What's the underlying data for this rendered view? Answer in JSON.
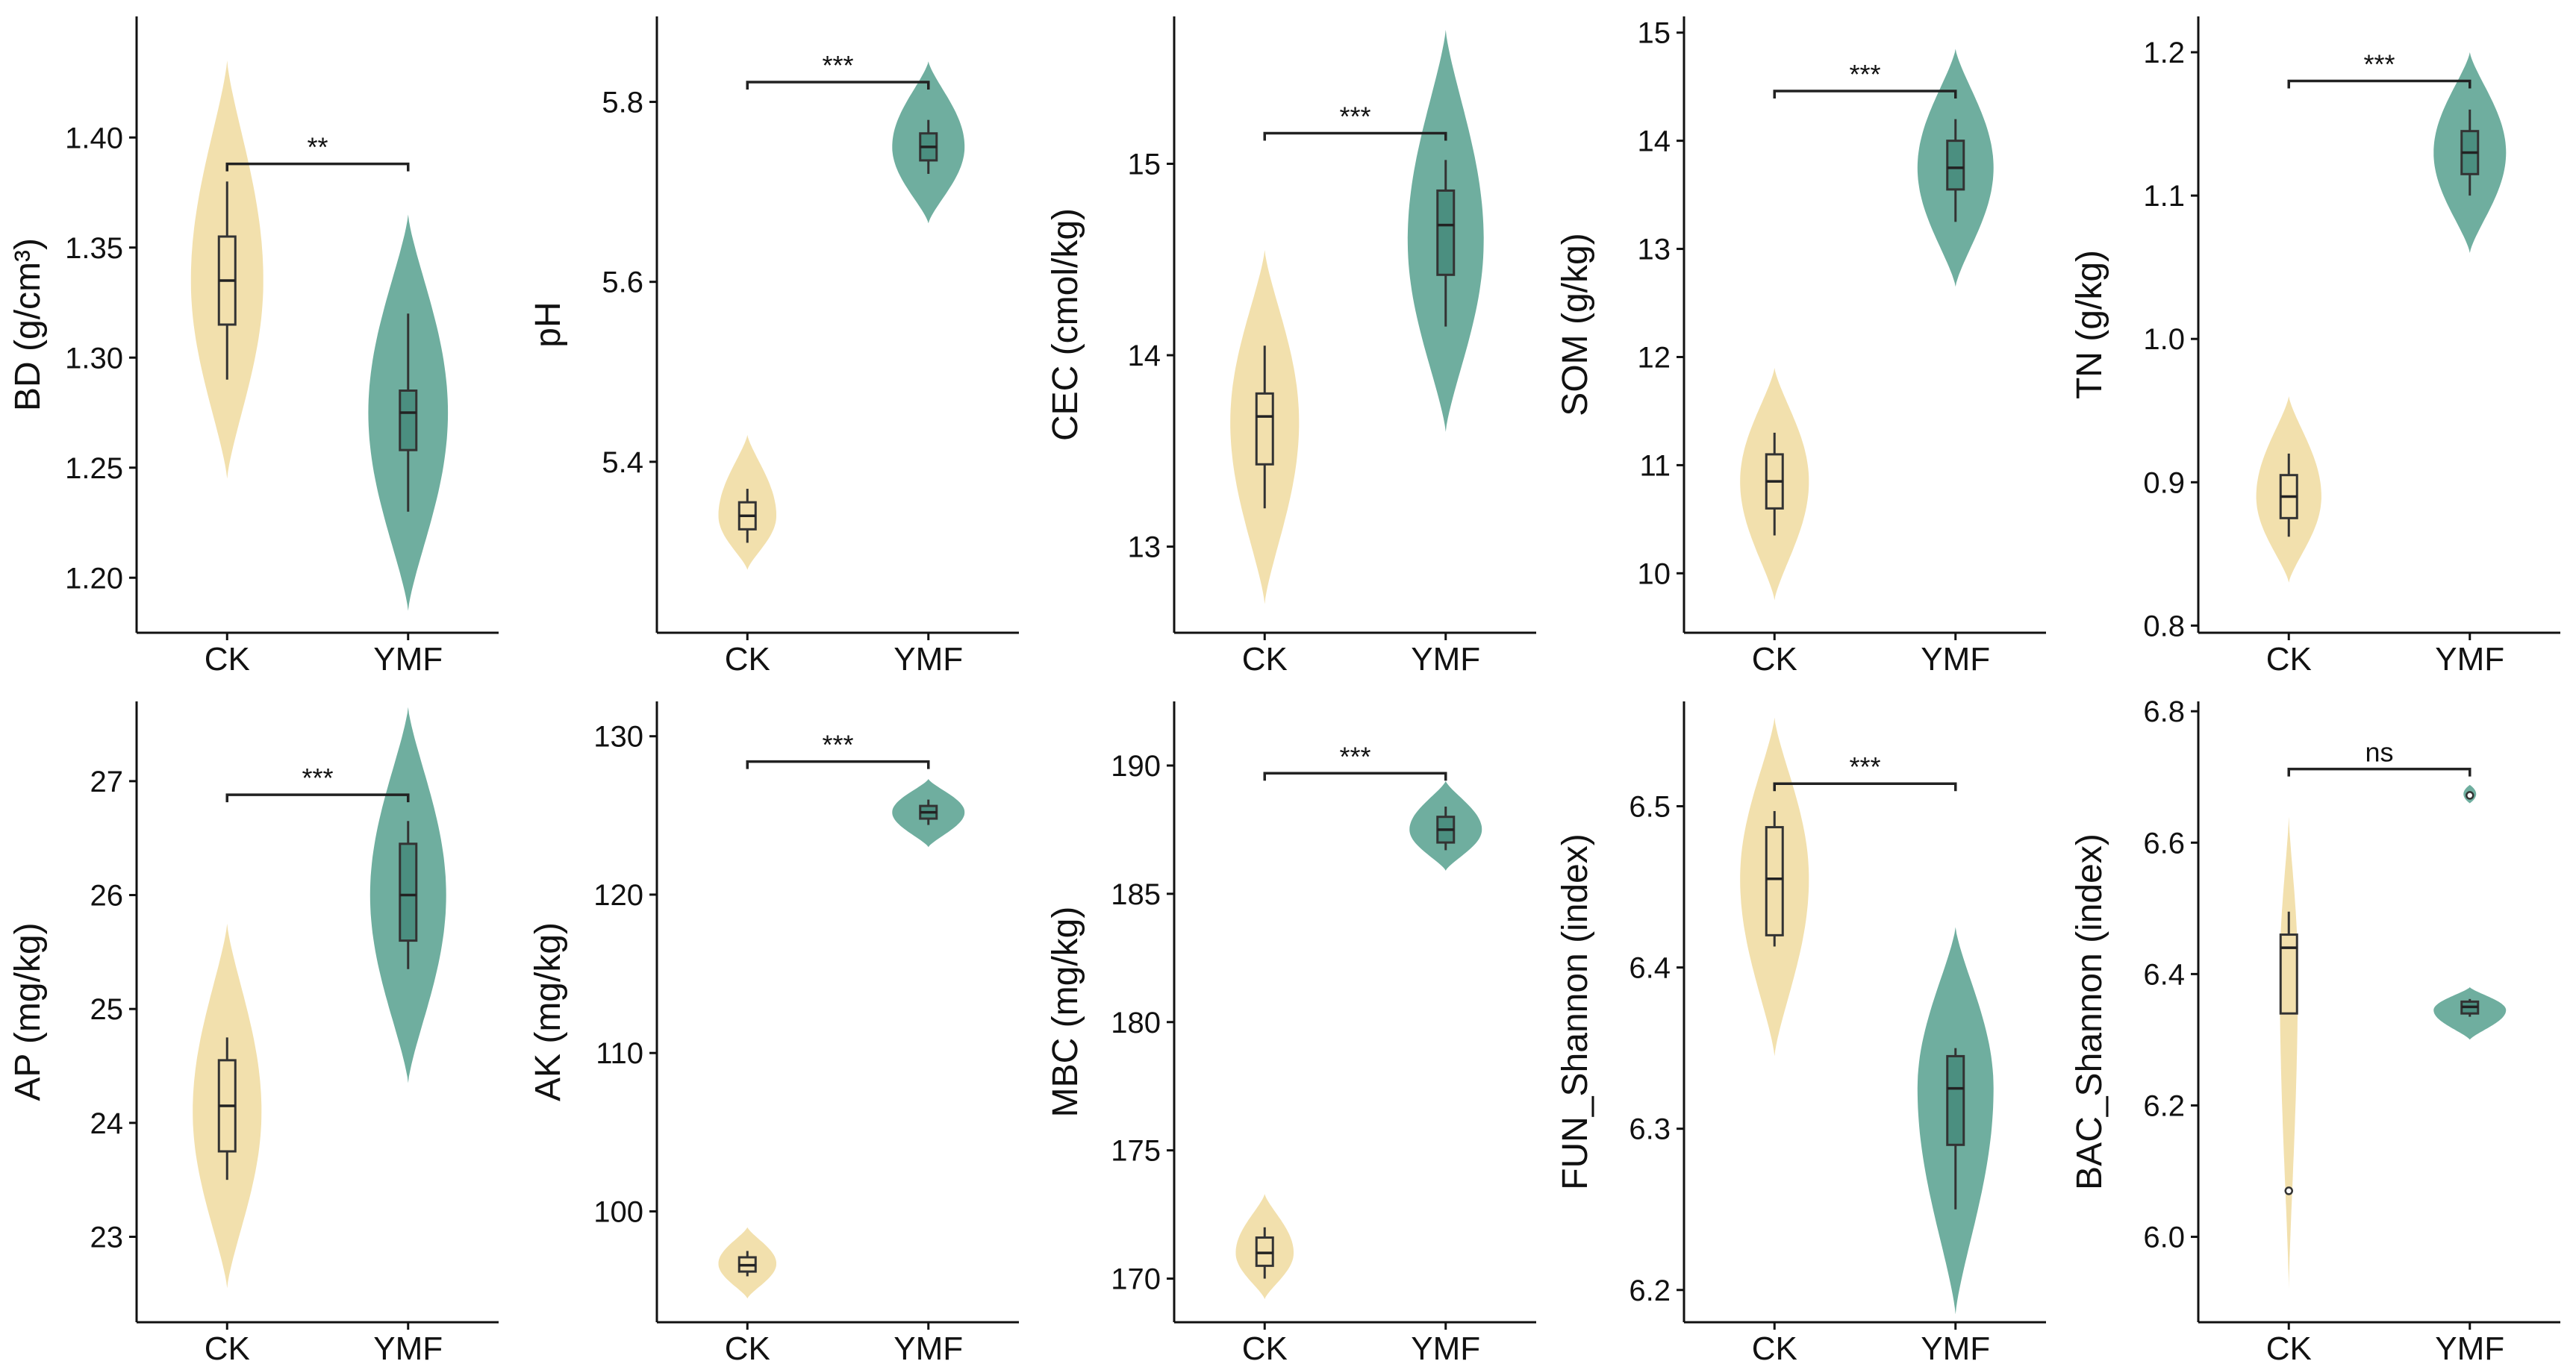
{
  "colors": {
    "CK": "#f2e0ad",
    "YMF": "#6fae9f",
    "YMF_box": "#4b8f80",
    "axis": "#111111"
  },
  "chart_data": [
    {
      "type": "violin",
      "ylabel": "BD (g/cm³)",
      "categories": [
        "CK",
        "YMF"
      ],
      "ylim": [
        1.175,
        1.455
      ],
      "yticks": [
        1.2,
        1.25,
        1.3,
        1.35,
        1.4
      ],
      "ytick_labels": [
        "1.20",
        "1.25",
        "1.30",
        "1.35",
        "1.40"
      ],
      "significance": "**",
      "bracket_y": 1.388,
      "series": [
        {
          "name": "CK",
          "violin_range": [
            1.245,
            1.435
          ],
          "violin_peak": 1.335,
          "violin_width": 0.4,
          "box": {
            "min": 1.29,
            "q1": 1.315,
            "median": 1.335,
            "q3": 1.355,
            "max": 1.38
          },
          "outliers": []
        },
        {
          "name": "YMF",
          "violin_range": [
            1.185,
            1.365
          ],
          "violin_peak": 1.275,
          "violin_width": 0.44,
          "box": {
            "min": 1.23,
            "q1": 1.258,
            "median": 1.275,
            "q3": 1.285,
            "max": 1.32
          },
          "outliers": []
        }
      ]
    },
    {
      "type": "violin",
      "ylabel": "pH",
      "categories": [
        "CK",
        "YMF"
      ],
      "ylim": [
        5.21,
        5.895
      ],
      "yticks": [
        5.4,
        5.6,
        5.8
      ],
      "ytick_labels": [
        "5.4",
        "5.6",
        "5.8"
      ],
      "significance": "***",
      "bracket_y": 5.822,
      "series": [
        {
          "name": "CK",
          "violin_range": [
            5.28,
            5.43
          ],
          "violin_peak": 5.34,
          "violin_width": 0.32,
          "box": {
            "min": 5.31,
            "q1": 5.325,
            "median": 5.34,
            "q3": 5.355,
            "max": 5.37
          },
          "outliers": []
        },
        {
          "name": "YMF",
          "violin_range": [
            5.665,
            5.845
          ],
          "violin_peak": 5.75,
          "violin_width": 0.4,
          "box": {
            "min": 5.72,
            "q1": 5.735,
            "median": 5.75,
            "q3": 5.765,
            "max": 5.78
          },
          "outliers": []
        }
      ]
    },
    {
      "type": "violin",
      "ylabel": "CEC (cmol/kg)",
      "categories": [
        "CK",
        "YMF"
      ],
      "ylim": [
        12.55,
        15.77
      ],
      "yticks": [
        13,
        14,
        15
      ],
      "ytick_labels": [
        "13",
        "14",
        "15"
      ],
      "significance": "***",
      "bracket_y": 15.16,
      "series": [
        {
          "name": "CK",
          "violin_range": [
            12.7,
            14.55
          ],
          "violin_peak": 13.65,
          "violin_width": 0.38,
          "box": {
            "min": 13.2,
            "q1": 13.43,
            "median": 13.68,
            "q3": 13.8,
            "max": 14.05
          },
          "outliers": []
        },
        {
          "name": "YMF",
          "violin_range": [
            13.6,
            15.7
          ],
          "violin_peak": 14.6,
          "violin_width": 0.42,
          "box": {
            "min": 14.15,
            "q1": 14.42,
            "median": 14.68,
            "q3": 14.86,
            "max": 15.02
          },
          "outliers": []
        }
      ]
    },
    {
      "type": "violin",
      "ylabel": "SOM (g/kg)",
      "categories": [
        "CK",
        "YMF"
      ],
      "ylim": [
        9.45,
        15.15
      ],
      "yticks": [
        10,
        11,
        12,
        13,
        14,
        15
      ],
      "ytick_labels": [
        "10",
        "11",
        "12",
        "13",
        "14",
        "15"
      ],
      "significance": "***",
      "bracket_y": 14.46,
      "series": [
        {
          "name": "CK",
          "violin_range": [
            9.75,
            11.9
          ],
          "violin_peak": 10.85,
          "violin_width": 0.38,
          "box": {
            "min": 10.35,
            "q1": 10.6,
            "median": 10.85,
            "q3": 11.1,
            "max": 11.3
          },
          "outliers": []
        },
        {
          "name": "YMF",
          "violin_range": [
            12.65,
            14.85
          ],
          "violin_peak": 13.75,
          "violin_width": 0.42,
          "box": {
            "min": 13.25,
            "q1": 13.55,
            "median": 13.75,
            "q3": 14.0,
            "max": 14.2
          },
          "outliers": []
        }
      ]
    },
    {
      "type": "violin",
      "ylabel": "TN (g/kg)",
      "categories": [
        "CK",
        "YMF"
      ],
      "ylim": [
        0.795,
        1.225
      ],
      "yticks": [
        0.8,
        0.9,
        1.0,
        1.1,
        1.2
      ],
      "ytick_labels": [
        "0.8",
        "0.9",
        "1.0",
        "1.1",
        "1.2"
      ],
      "significance": "***",
      "bracket_y": 1.18,
      "series": [
        {
          "name": "CK",
          "violin_range": [
            0.83,
            0.96
          ],
          "violin_peak": 0.89,
          "violin_width": 0.36,
          "box": {
            "min": 0.862,
            "q1": 0.875,
            "median": 0.89,
            "q3": 0.905,
            "max": 0.92
          },
          "outliers": []
        },
        {
          "name": "YMF",
          "violin_range": [
            1.06,
            1.2
          ],
          "violin_peak": 1.13,
          "violin_width": 0.4,
          "box": {
            "min": 1.1,
            "q1": 1.115,
            "median": 1.13,
            "q3": 1.145,
            "max": 1.16
          },
          "outliers": []
        }
      ]
    },
    {
      "type": "violin",
      "ylabel": "AP (mg/kg)",
      "categories": [
        "CK",
        "YMF"
      ],
      "ylim": [
        22.25,
        27.7
      ],
      "yticks": [
        23,
        24,
        25,
        26,
        27
      ],
      "ytick_labels": [
        "23",
        "24",
        "25",
        "26",
        "27"
      ],
      "significance": "***",
      "bracket_y": 26.88,
      "series": [
        {
          "name": "CK",
          "violin_range": [
            22.55,
            25.75
          ],
          "violin_peak": 24.1,
          "violin_width": 0.38,
          "box": {
            "min": 23.5,
            "q1": 23.75,
            "median": 24.15,
            "q3": 24.55,
            "max": 24.75
          },
          "outliers": []
        },
        {
          "name": "YMF",
          "violin_range": [
            24.35,
            27.65
          ],
          "violin_peak": 26.0,
          "violin_width": 0.42,
          "box": {
            "min": 25.35,
            "q1": 25.6,
            "median": 26.0,
            "q3": 26.45,
            "max": 26.65
          },
          "outliers": []
        }
      ]
    },
    {
      "type": "violin",
      "ylabel": "AK (mg/kg)",
      "categories": [
        "CK",
        "YMF"
      ],
      "ylim": [
        93.0,
        132.2
      ],
      "yticks": [
        100,
        110,
        120,
        130
      ],
      "ytick_labels": [
        "100",
        "110",
        "120",
        "130"
      ],
      "significance": "***",
      "bracket_y": 128.4,
      "series": [
        {
          "name": "CK",
          "violin_range": [
            94.5,
            99.0
          ],
          "violin_peak": 96.7,
          "violin_width": 0.32,
          "box": {
            "min": 95.9,
            "q1": 96.2,
            "median": 96.6,
            "q3": 97.1,
            "max": 97.5
          },
          "outliers": []
        },
        {
          "name": "YMF",
          "violin_range": [
            123.0,
            127.3
          ],
          "violin_peak": 125.2,
          "violin_width": 0.4,
          "box": {
            "min": 124.4,
            "q1": 124.8,
            "median": 125.2,
            "q3": 125.6,
            "max": 126.0
          },
          "outliers": []
        }
      ]
    },
    {
      "type": "violin",
      "ylabel": "MBC (mg/kg)",
      "categories": [
        "CK",
        "YMF"
      ],
      "ylim": [
        168.3,
        192.5
      ],
      "yticks": [
        170,
        175,
        180,
        185,
        190
      ],
      "ytick_labels": [
        "170",
        "175",
        "180",
        "185",
        "190"
      ],
      "significance": "***",
      "bracket_y": 189.7,
      "series": [
        {
          "name": "CK",
          "violin_range": [
            169.2,
            173.3
          ],
          "violin_peak": 171.0,
          "violin_width": 0.32,
          "box": {
            "min": 170.0,
            "q1": 170.5,
            "median": 171.0,
            "q3": 171.6,
            "max": 172.0
          },
          "outliers": []
        },
        {
          "name": "YMF",
          "violin_range": [
            185.9,
            189.4
          ],
          "violin_peak": 187.5,
          "violin_width": 0.4,
          "box": {
            "min": 186.7,
            "q1": 187.0,
            "median": 187.5,
            "q3": 188.0,
            "max": 188.4
          },
          "outliers": []
        }
      ]
    },
    {
      "type": "violin",
      "ylabel": "FUN_Shannon (index)",
      "categories": [
        "CK",
        "YMF"
      ],
      "ylim": [
        6.18,
        6.565
      ],
      "yticks": [
        6.2,
        6.3,
        6.4,
        6.5
      ],
      "ytick_labels": [
        "6.2",
        "6.3",
        "6.4",
        "6.5"
      ],
      "significance": "***",
      "bracket_y": 6.514,
      "series": [
        {
          "name": "CK",
          "violin_range": [
            6.345,
            6.555
          ],
          "violin_peak": 6.455,
          "violin_width": 0.38,
          "box": {
            "min": 6.413,
            "q1": 6.42,
            "median": 6.455,
            "q3": 6.487,
            "max": 6.497
          },
          "outliers": []
        },
        {
          "name": "YMF",
          "violin_range": [
            6.185,
            6.425
          ],
          "violin_peak": 6.325,
          "violin_width": 0.42,
          "box": {
            "min": 6.25,
            "q1": 6.29,
            "median": 6.325,
            "q3": 6.345,
            "max": 6.35
          },
          "outliers": []
        }
      ]
    },
    {
      "type": "violin",
      "ylabel": "BAC_Shannon (index)",
      "categories": [
        "CK",
        "YMF"
      ],
      "ylim": [
        5.87,
        6.815
      ],
      "yticks": [
        6.0,
        6.2,
        6.4,
        6.6,
        6.8
      ],
      "ytick_labels": [
        "6.0",
        "6.2",
        "6.4",
        "6.6",
        "6.8"
      ],
      "significance": "ns",
      "bracket_y": 6.712,
      "series": [
        {
          "name": "CK",
          "violin_range": [
            5.92,
            6.64
          ],
          "violin_peak": 6.4,
          "violin_width": 0.1,
          "box": {
            "min": 6.34,
            "q1": 6.34,
            "median": 6.44,
            "q3": 6.46,
            "max": 6.495
          },
          "outliers": [
            6.07
          ]
        },
        {
          "name": "YMF",
          "violin_range": [
            6.3,
            6.38
          ],
          "violin_peak": 6.345,
          "violin_width": 0.4,
          "extra_lobe": [
            6.66,
            6.688
          ],
          "box": {
            "min": 6.335,
            "q1": 6.34,
            "median": 6.35,
            "q3": 6.358,
            "max": 6.362
          },
          "outliers": [
            6.672
          ]
        }
      ]
    }
  ]
}
